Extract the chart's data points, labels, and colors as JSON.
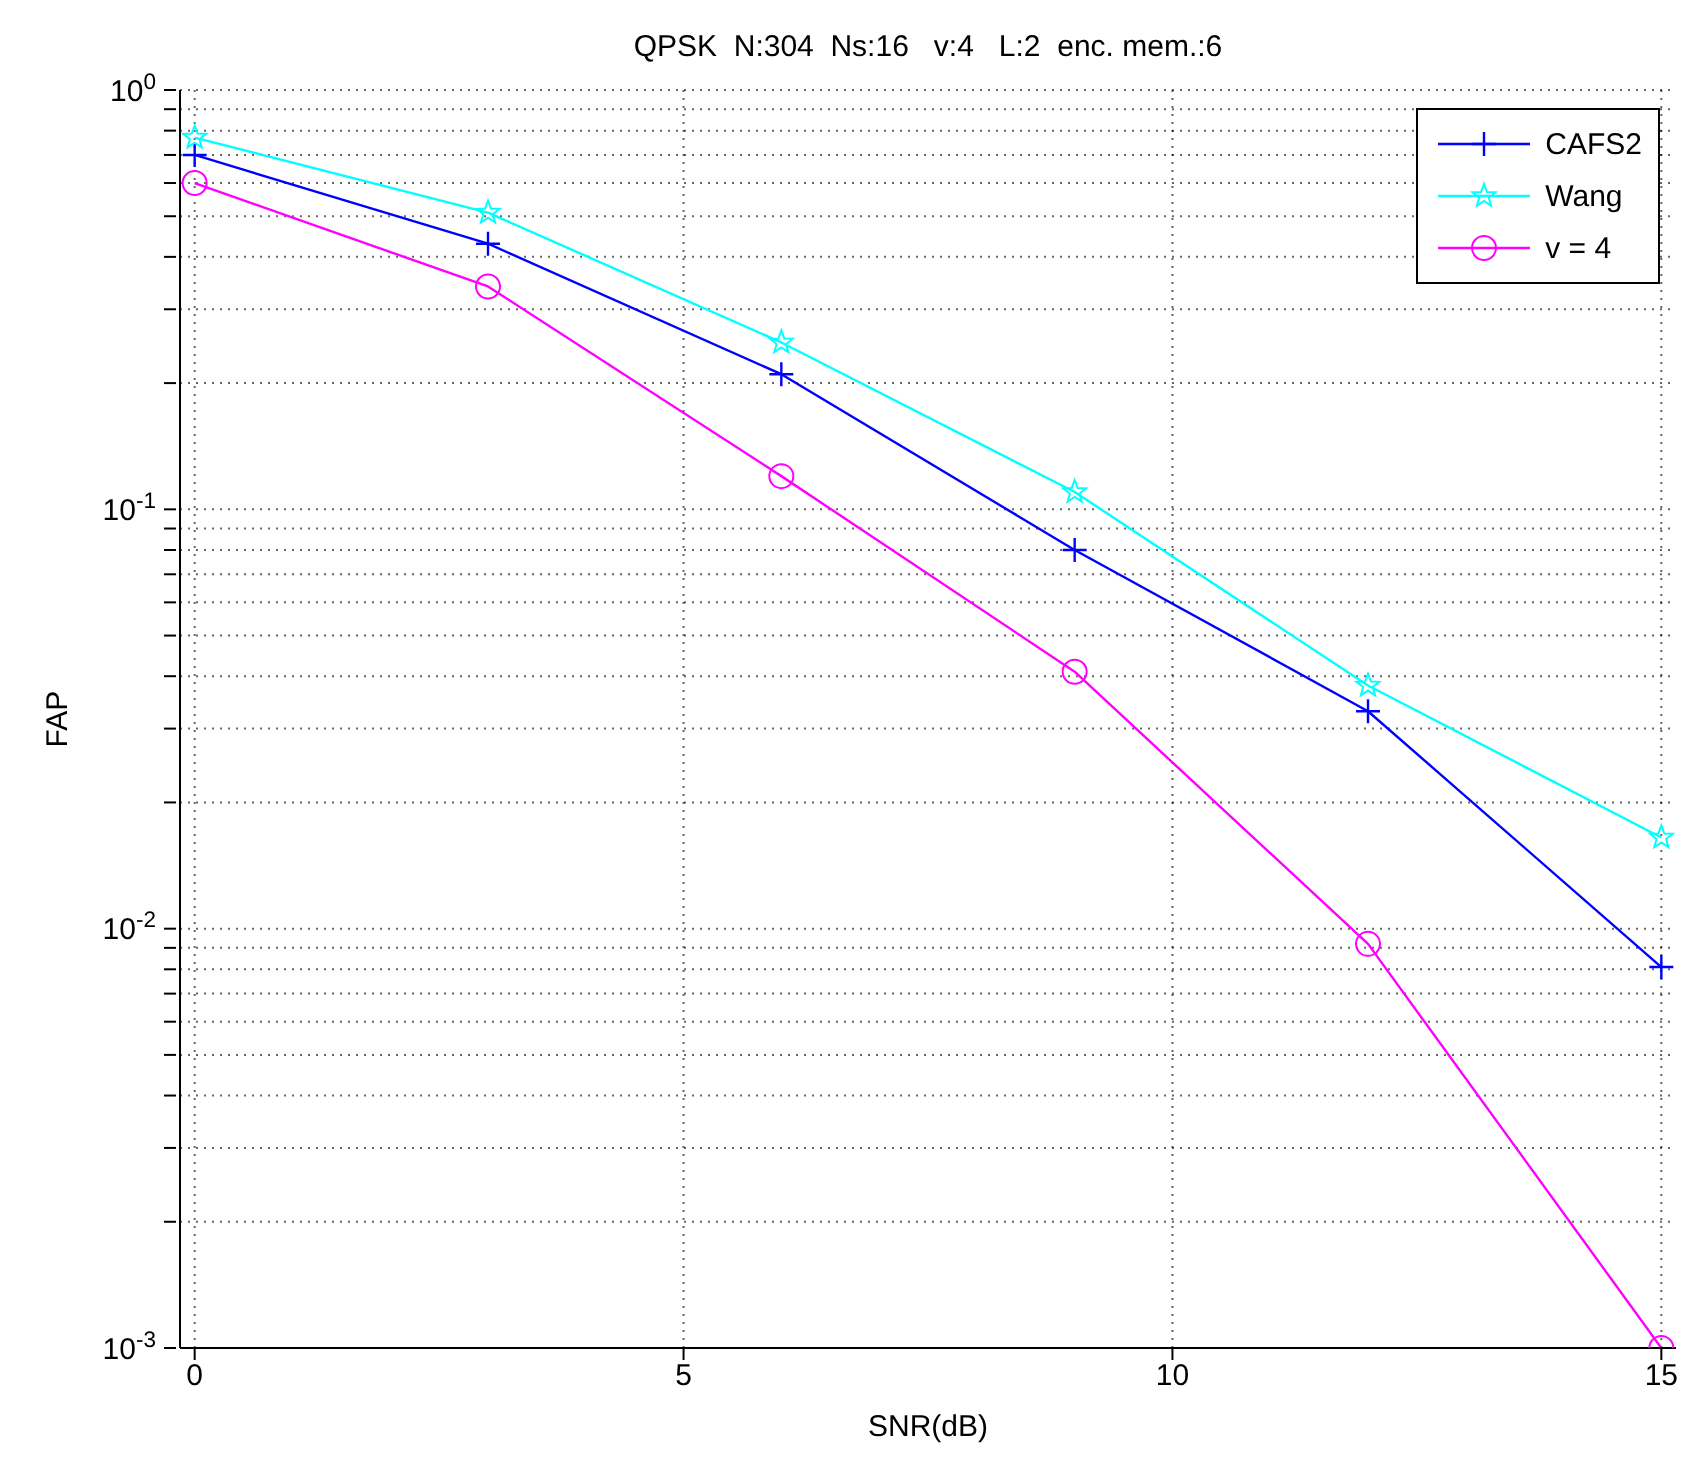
{
  "chart_data": {
    "type": "line",
    "title": "QPSK  N:304  Ns:16   v:4   L:2  enc. mem.:6",
    "xlabel": "SNR(dB)",
    "ylabel": "FAP",
    "x": [
      0,
      3,
      6,
      9,
      12,
      15
    ],
    "series": [
      {
        "name": "CAFS2",
        "color": "#0000ff",
        "marker": "cross",
        "values": [
          0.7,
          0.43,
          0.21,
          0.08,
          0.033,
          0.0081
        ]
      },
      {
        "name": "Wang",
        "color": "#00ffff",
        "marker": "star",
        "values": [
          0.77,
          0.51,
          0.25,
          0.11,
          0.038,
          0.0165
        ]
      },
      {
        "name": "v = 4",
        "color": "#ff00ff",
        "marker": "circle",
        "values": [
          0.6,
          0.34,
          0.12,
          0.041,
          0.0092,
          0.001
        ]
      }
    ],
    "log": "y",
    "xlim": [
      -0.15,
      15.15
    ],
    "xticks": [
      0,
      5,
      10,
      15
    ],
    "ylim": [
      0.001,
      1
    ],
    "yticks": [
      {
        "value": 0.001,
        "label": "10$^{-3}$"
      },
      {
        "value": 0.002,
        "label": null
      },
      {
        "value": 0.003,
        "label": null
      },
      {
        "value": 0.004,
        "label": null
      },
      {
        "value": 0.005,
        "label": null
      },
      {
        "value": 0.006,
        "label": null
      },
      {
        "value": 0.007,
        "label": null
      },
      {
        "value": 0.008,
        "label": null
      },
      {
        "value": 0.009,
        "label": null
      },
      {
        "value": 0.01,
        "label": "10$^{-2}$"
      },
      {
        "value": 0.02,
        "label": null
      },
      {
        "value": 0.03,
        "label": null
      },
      {
        "value": 0.04,
        "label": null
      },
      {
        "value": 0.05,
        "label": null
      },
      {
        "value": 0.06,
        "label": null
      },
      {
        "value": 0.07,
        "label": null
      },
      {
        "value": 0.08,
        "label": null
      },
      {
        "value": 0.09,
        "label": null
      },
      {
        "value": 0.1,
        "label": "10$^{-1}$"
      },
      {
        "value": 0.2,
        "label": null
      },
      {
        "value": 0.3,
        "label": null
      },
      {
        "value": 0.4,
        "label": null
      },
      {
        "value": 0.5,
        "label": null
      },
      {
        "value": 0.6,
        "label": null
      },
      {
        "value": 0.7,
        "label": null
      },
      {
        "value": 0.8,
        "label": null
      },
      {
        "value": 0.9,
        "label": null
      },
      {
        "value": 1,
        "label": "10$^{0}$"
      }
    ],
    "grid": true,
    "legend": "top right",
    "line_style": "solid"
  }
}
